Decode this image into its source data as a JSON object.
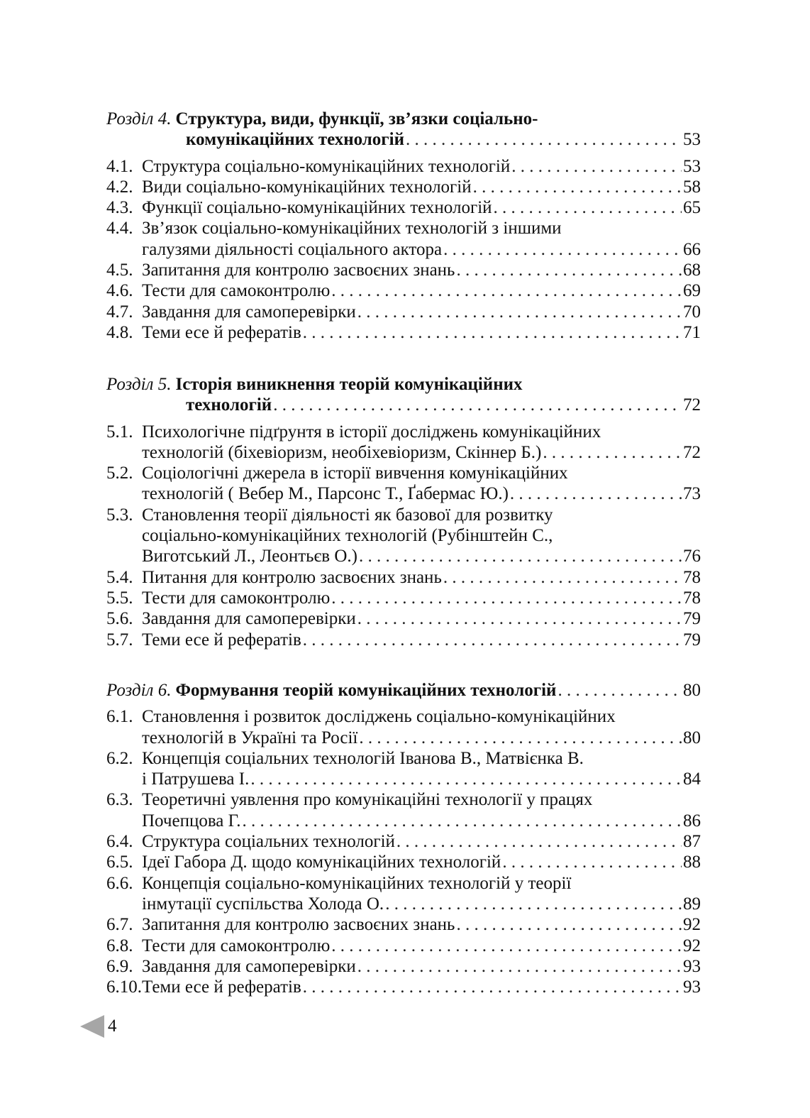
{
  "sections": [
    {
      "label": "Розділ 4.",
      "title_lines": [
        "Структура, види, функції, зв’язки соціально-",
        "комунікаційних технологій"
      ],
      "page": "53",
      "items": [
        {
          "num": "4.1.",
          "lines": [
            "Структура соціально-комунікаційних технологій"
          ],
          "page": "53"
        },
        {
          "num": "4.2.",
          "lines": [
            "Види соціально-комунікаційних технологій"
          ],
          "page": "58"
        },
        {
          "num": "4.3.",
          "lines": [
            "Функції соціально-комунікаційних технологій"
          ],
          "page": "65"
        },
        {
          "num": "4.4.",
          "lines": [
            "Зв’язок соціально-комунікаційних технологій з іншими",
            "галузями діяльності соціального актора"
          ],
          "page": "66"
        },
        {
          "num": "4.5.",
          "lines": [
            "Запитання для контролю засвоєних знань"
          ],
          "page": "68"
        },
        {
          "num": "4.6.",
          "lines": [
            "Тести для самоконтролю"
          ],
          "page": "69"
        },
        {
          "num": "4.7.",
          "lines": [
            "Завдання для самоперевірки"
          ],
          "page": "70"
        },
        {
          "num": "4.8.",
          "lines": [
            "Теми есе й рефератів"
          ],
          "page": "71"
        }
      ]
    },
    {
      "label": "Розділ 5.",
      "title_lines": [
        "Історія виникнення теорій комунікаційних",
        "технологій"
      ],
      "page": "72",
      "items": [
        {
          "num": "5.1.",
          "lines": [
            "Психологічне підґрунтя в історії досліджень комунікаційних",
            "технологій (біхевіоризм, необіхевіоризм, Скіннер Б.)"
          ],
          "page": "72"
        },
        {
          "num": "5.2.",
          "lines": [
            "Соціологічні джерела в історії вивчення комунікаційних",
            "технологій ( Вебер М., Парсонс Т., Ґабермас Ю.)"
          ],
          "page": "73"
        },
        {
          "num": "5.3.",
          "lines": [
            "Становлення теорії діяльності як базової для розвитку",
            "соціально-комунікаційних технологій (Рубінштейн С.,",
            "Виготський Л., Леонтьєв О.)"
          ],
          "page": "76"
        },
        {
          "num": "5.4.",
          "lines": [
            "Питання для контролю засвоєних знань"
          ],
          "page": "78"
        },
        {
          "num": "5.5.",
          "lines": [
            "Тести для самоконтролю"
          ],
          "page": "78"
        },
        {
          "num": "5.6.",
          "lines": [
            "Завдання для самоперевірки"
          ],
          "page": "79"
        },
        {
          "num": "5.7.",
          "lines": [
            "Теми есе й рефератів"
          ],
          "page": "79"
        }
      ]
    },
    {
      "label": "Розділ 6.",
      "title_lines": [
        "Формування теорій комунікаційних технологій"
      ],
      "page": "80",
      "items": [
        {
          "num": "6.1.",
          "lines": [
            "Становлення і розвиток  досліджень соціально-комунікаційних",
            "технологій в Україні та Росії"
          ],
          "page": "80"
        },
        {
          "num": "6.2.",
          "lines": [
            "Концепція соціальних технологій Іванова В., Матвієнка В.",
            "і Патрушева І."
          ],
          "page": "84"
        },
        {
          "num": "6.3.",
          "lines": [
            "Теоретичні уявлення про комунікаційні технології у працях",
            "Почепцова Г."
          ],
          "page": "86"
        },
        {
          "num": "6.4.",
          "lines": [
            "Структура соціальних технологій"
          ],
          "page": "87"
        },
        {
          "num": "6.5.",
          "lines": [
            "Ідеї Габора Д. щодо комунікаційних технологій"
          ],
          "page": "88"
        },
        {
          "num": "6.6.",
          "lines": [
            "Концепція соціально-комунікаційних технологій у теорії",
            "інмутації суспільства Холода О."
          ],
          "page": "89"
        },
        {
          "num": "6.7.",
          "lines": [
            "Запитання для контролю засвоєних знань"
          ],
          "page": "92"
        },
        {
          "num": "6.8.",
          "lines": [
            "Тести для самоконтролю"
          ],
          "page": "92"
        },
        {
          "num": "6.9.",
          "lines": [
            "Завдання для самоперевірки"
          ],
          "page": "93"
        },
        {
          "num": "6.10.",
          "lines": [
            "Теми есе й рефератів"
          ],
          "page": "93"
        }
      ]
    }
  ],
  "footer": {
    "page_number": "4",
    "marker_color": "#a6a6a6"
  }
}
